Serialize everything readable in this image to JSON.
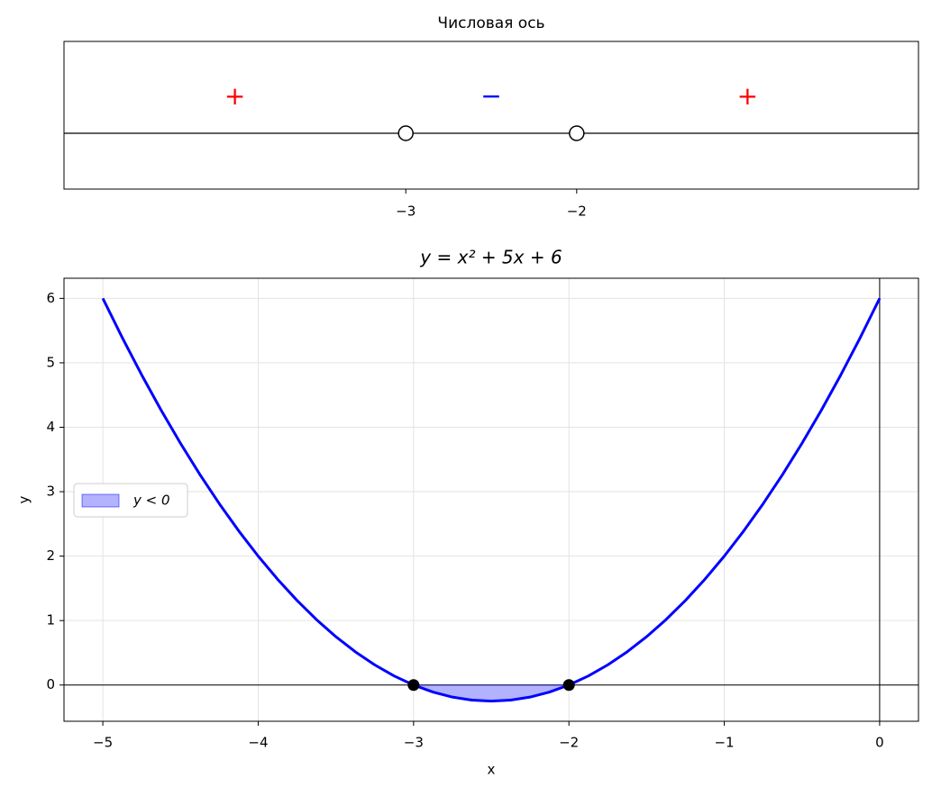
{
  "chart_data": [
    {
      "type": "number_line",
      "title": "Числовая ось",
      "xlim": [
        -5,
        0
      ],
      "xticks": [
        {
          "value": -3,
          "label": "−3"
        },
        {
          "value": -2,
          "label": "−2"
        }
      ],
      "points": {
        "x": [
          -3,
          -2
        ],
        "marker": "open-circle"
      },
      "signs": [
        {
          "x": -4,
          "text": "+",
          "color": "#ff0000"
        },
        {
          "x": -2.5,
          "text": "−",
          "color": "#0000ff"
        },
        {
          "x": -1,
          "text": "+",
          "color": "#ff0000"
        }
      ]
    },
    {
      "type": "line",
      "title": "y = x² + 5x + 6",
      "x_label": "x",
      "y_label": "y",
      "xlim": [
        -5.25,
        0.25
      ],
      "ylim": [
        -0.5625,
        6.3125
      ],
      "xticks": [
        {
          "value": -5,
          "label": "−5"
        },
        {
          "value": -4,
          "label": "−4"
        },
        {
          "value": -3,
          "label": "−3"
        },
        {
          "value": -2,
          "label": "−2"
        },
        {
          "value": -1,
          "label": "−1"
        },
        0
      ],
      "yticks": [
        0,
        1,
        2,
        3,
        4,
        5,
        6
      ],
      "grid": true,
      "zero_lines": true,
      "legend": "center left",
      "series": [
        {
          "color": "#0000ff",
          "x": [
            -5,
            -4.875,
            -4.75,
            -4.625,
            -4.5,
            -4.375,
            -4.25,
            -4.125,
            -4,
            -3.875,
            -3.75,
            -3.625,
            -3.5,
            -3.375,
            -3.25,
            -3.125,
            -3,
            -2.875,
            -2.75,
            -2.625,
            -2.5,
            -2.375,
            -2.25,
            -2.125,
            -2,
            -1.875,
            -1.75,
            -1.625,
            -1.5,
            -1.375,
            -1.25,
            -1.125,
            -1,
            -0.875,
            -0.75,
            -0.625,
            -0.5,
            -0.375,
            -0.25,
            -0.125,
            0
          ],
          "values": [
            6,
            5.390625,
            4.8125,
            4.265625,
            3.75,
            3.265625,
            2.8125,
            2.390625,
            2,
            1.640625,
            1.3125,
            1.015625,
            0.75,
            0.515625,
            0.3125,
            0.140625,
            0,
            -0.109375,
            -0.1875,
            -0.234375,
            -0.25,
            -0.234375,
            -0.1875,
            -0.109375,
            0,
            0.140625,
            0.3125,
            0.515625,
            0.75,
            1.015625,
            1.3125,
            1.640625,
            2,
            2.390625,
            2.8125,
            3.265625,
            3.75,
            4.265625,
            4.8125,
            5.390625,
            6
          ]
        }
      ],
      "fill": {
        "name": "y < 0",
        "color": "#0000ff",
        "alpha": 0.3,
        "x": [
          -3,
          -2.875,
          -2.75,
          -2.625,
          -2.5,
          -2.375,
          -2.25,
          -2.125,
          -2
        ],
        "values": [
          0,
          -0.109375,
          -0.1875,
          -0.234375,
          -0.25,
          -0.234375,
          -0.1875,
          -0.109375,
          0
        ]
      },
      "points": {
        "x": [
          -3,
          -2
        ],
        "values": [
          0,
          0
        ],
        "color": "#000000"
      }
    }
  ]
}
